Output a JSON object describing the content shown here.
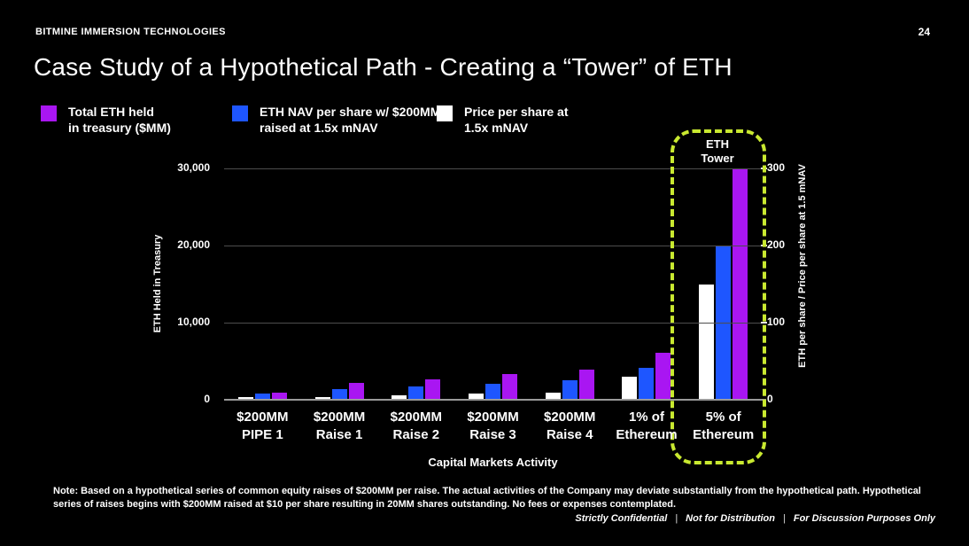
{
  "header": {
    "company": "BITMINE IMMERSION TECHNOLOGIES",
    "page_number": "24"
  },
  "title": "Case Study of a Hypothetical Path - Creating a “Tower” of ETH",
  "legend": {
    "items": [
      {
        "id": "total-eth-treasury",
        "color": "#a916f2",
        "line1": "Total ETH held",
        "line2": "in treasury ($MM)"
      },
      {
        "id": "eth-nav-per-share",
        "color": "#1e56ff",
        "line1": "ETH NAV per share w/ $200MM",
        "line2": "raised at 1.5x mNAV"
      },
      {
        "id": "price-per-share",
        "color": "#ffffff",
        "line1": "Price per share at",
        "line2": "1.5x mNAV"
      }
    ]
  },
  "chart_data": {
    "type": "bar",
    "categories": [
      [
        "$200MM",
        "PIPE 1"
      ],
      [
        "$200MM",
        "Raise 1"
      ],
      [
        "$200MM",
        "Raise 2"
      ],
      [
        "$200MM",
        "Raise 3"
      ],
      [
        "$200MM",
        "Raise 4"
      ],
      [
        "1% of",
        "Ethereum"
      ],
      [
        "5% of",
        "Ethereum"
      ]
    ],
    "series": [
      {
        "name": "Price per share at 1.5x mNAV",
        "color": "#ffffff",
        "axis": "right",
        "values": [
          3,
          4,
          6,
          8,
          9,
          30,
          150
        ]
      },
      {
        "name": "ETH NAV per share w/ $200MM raised at 1.5x mNAV",
        "color": "#1e56ff",
        "axis": "right",
        "values": [
          8,
          14,
          17,
          21,
          25,
          41,
          200
        ]
      },
      {
        "name": "Total ETH held in treasury ($MM)",
        "color": "#a916f2",
        "axis": "left",
        "values": [
          900,
          2200,
          2600,
          3300,
          3900,
          6100,
          30000
        ]
      }
    ],
    "left_axis": {
      "label": "ETH Held in Treasury",
      "max": 30000,
      "ticks": [
        {
          "label": "0",
          "value": 0
        },
        {
          "label": "10,000",
          "value": 10000
        },
        {
          "label": "20,000",
          "value": 20000
        },
        {
          "label": "30,000",
          "value": 30000
        }
      ]
    },
    "right_axis": {
      "label": "ETH per share / Price per share at 1.5 mNAV",
      "max": 300,
      "ticks": [
        {
          "label": "0",
          "value": 0
        },
        {
          "label": "100",
          "value": 100
        },
        {
          "label": "200",
          "value": 200
        },
        {
          "label": "300",
          "value": 300
        }
      ]
    },
    "xlabel": "Capital Markets Activity",
    "annotation": {
      "line1": "ETH",
      "line2": "Tower",
      "target_category": "5% of Ethereum",
      "box_color": "#c9e930"
    },
    "grid": true,
    "legend_position": "top"
  },
  "note": {
    "line1": "Note: Based on a hypothetical series of common equity raises of $200MM per raise.  The actual activities of the Company may deviate substantially from the hypothetical path. Hypothetical",
    "line2": "series of raises begins with $200MM raised at $10 per share resulting in 20MM shares outstanding.  No fees or expenses contemplated."
  },
  "footer": {
    "separator": "|",
    "items": [
      "Strictly Confidential",
      "Not for Distribution",
      "For Discussion Purposes Only"
    ]
  }
}
